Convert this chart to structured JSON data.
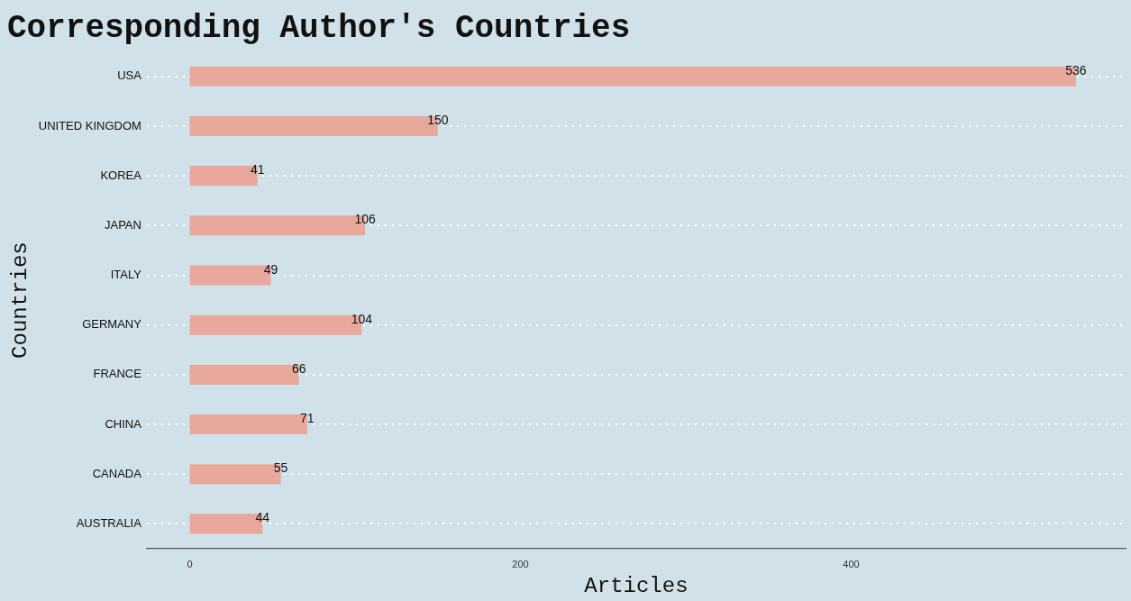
{
  "chart_data": {
    "type": "bar",
    "orientation": "horizontal",
    "title": "Corresponding Author's Countries",
    "xlabel": "Articles",
    "ylabel": "Countries",
    "categories": [
      "USA",
      "UNITED KINGDOM",
      "KOREA",
      "JAPAN",
      "ITALY",
      "GERMANY",
      "FRANCE",
      "CHINA",
      "CANADA",
      "AUSTRALIA"
    ],
    "values": [
      536,
      150,
      41,
      106,
      49,
      104,
      66,
      71,
      55,
      44
    ],
    "color": "#e8a89c",
    "xlim": [
      -26,
      566
    ],
    "xticks": [
      0,
      200,
      400
    ],
    "grid": "y",
    "data_labels": true,
    "legend": false
  }
}
